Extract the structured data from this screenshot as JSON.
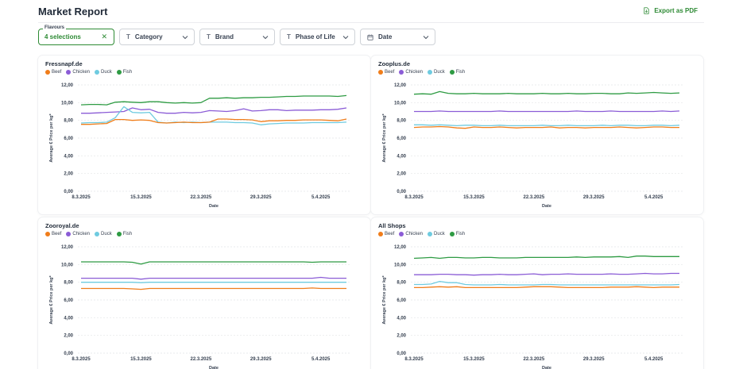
{
  "header": {
    "title": "Market Report",
    "export_label": "Export as PDF"
  },
  "filters": {
    "flavours": {
      "legend": "Flavours",
      "value": "4 selections"
    },
    "category": "Category",
    "brand": "Brand",
    "phase_of_life": "Phase of Life",
    "date": "Date"
  },
  "legend": [
    {
      "name": "Beef",
      "color": "#f07d1a"
    },
    {
      "name": "Chicken",
      "color": "#8b5cd6"
    },
    {
      "name": "Duck",
      "color": "#6fcbe0"
    },
    {
      "name": "Fish",
      "color": "#2e9b43"
    }
  ],
  "chart_data": [
    {
      "type": "line",
      "title": "Fressnapf.de",
      "xlabel": "Date",
      "ylabel": "Average € Price per kg*",
      "ylim": [
        0,
        12
      ],
      "yticks": [
        "0,00",
        "2,00",
        "4,00",
        "6,00",
        "8,00",
        "10,00",
        "12,00"
      ],
      "xticks": [
        "8.3.2025",
        "15.3.2025",
        "22.3.2025",
        "29.3.2025",
        "5.4.2025"
      ],
      "x_start": "8.3.2025",
      "series": [
        {
          "name": "Fish",
          "values": [
            9.75,
            9.8,
            9.8,
            9.75,
            10.05,
            10.1,
            10.05,
            10.0,
            10.1,
            10.1,
            10.0,
            9.95,
            10.0,
            9.95,
            10.0,
            10.5,
            10.5,
            10.55,
            10.5,
            10.55,
            10.55,
            10.6,
            10.6,
            10.65,
            10.7,
            10.7,
            10.75,
            10.75,
            10.75,
            10.75,
            10.7,
            10.8
          ]
        },
        {
          "name": "Chicken",
          "values": [
            8.8,
            8.8,
            8.85,
            8.9,
            8.95,
            9.0,
            9.4,
            9.2,
            9.25,
            8.9,
            8.8,
            8.8,
            8.9,
            8.85,
            8.9,
            9.1,
            9.05,
            9.0,
            9.1,
            9.3,
            9.05,
            9.1,
            9.2,
            9.2,
            9.1,
            9.15,
            9.15,
            9.15,
            9.2,
            9.2,
            9.25,
            9.4
          ]
        },
        {
          "name": "Duck",
          "values": [
            7.7,
            7.75,
            7.75,
            7.8,
            8.3,
            9.55,
            8.9,
            8.85,
            8.9,
            7.8,
            7.7,
            7.8,
            7.75,
            7.8,
            7.75,
            7.8,
            7.8,
            7.8,
            7.75,
            7.75,
            7.7,
            7.5,
            7.6,
            7.65,
            7.7,
            7.7,
            7.7,
            7.75,
            7.75,
            7.75,
            7.75,
            7.8
          ]
        },
        {
          "name": "Beef",
          "values": [
            7.55,
            7.55,
            7.6,
            7.65,
            8.1,
            8.1,
            8.0,
            8.05,
            8.0,
            7.75,
            7.7,
            7.75,
            7.8,
            7.75,
            7.75,
            7.8,
            8.15,
            8.15,
            8.1,
            8.1,
            8.05,
            7.85,
            7.95,
            7.95,
            8.0,
            8.0,
            8.05,
            8.05,
            8.05,
            8.0,
            7.95,
            8.15
          ]
        }
      ]
    },
    {
      "type": "line",
      "title": "Zooplus.de",
      "xlabel": "Date",
      "ylabel": "Average € Price per kg*",
      "ylim": [
        0,
        12
      ],
      "yticks": [
        "0,00",
        "2,00",
        "4,00",
        "6,00",
        "8,00",
        "10,00",
        "12,00"
      ],
      "xticks": [
        "8.3.2025",
        "15.3.2025",
        "22.3.2025",
        "29.3.2025",
        "5.4.2025"
      ],
      "x_start": "8.3.2025",
      "series": [
        {
          "name": "Fish",
          "values": [
            10.95,
            11.0,
            10.95,
            11.25,
            11.05,
            11.0,
            11.0,
            11.05,
            11.0,
            11.0,
            11.0,
            11.05,
            11.0,
            11.0,
            11.0,
            11.05,
            11.0,
            11.0,
            11.05,
            11.0,
            11.0,
            11.05,
            11.05,
            11.0,
            11.0,
            11.1,
            11.05,
            11.1,
            11.15,
            11.1,
            11.05,
            11.1
          ]
        },
        {
          "name": "Chicken",
          "values": [
            9.0,
            9.0,
            9.0,
            9.05,
            9.0,
            9.0,
            9.0,
            9.0,
            9.0,
            9.0,
            9.05,
            9.0,
            9.0,
            9.0,
            9.0,
            9.0,
            9.0,
            9.0,
            9.0,
            9.05,
            9.0,
            9.0,
            9.0,
            9.05,
            9.0,
            9.0,
            9.0,
            9.0,
            9.0,
            9.05,
            9.0,
            9.05
          ]
        },
        {
          "name": "Duck",
          "values": [
            7.5,
            7.5,
            7.45,
            7.5,
            7.45,
            7.4,
            7.45,
            7.45,
            7.4,
            7.4,
            7.45,
            7.4,
            7.4,
            7.4,
            7.4,
            7.45,
            7.4,
            7.4,
            7.45,
            7.4,
            7.4,
            7.4,
            7.45,
            7.4,
            7.45,
            7.45,
            7.4,
            7.4,
            7.45,
            7.45,
            7.4,
            7.45
          ]
        },
        {
          "name": "Beef",
          "values": [
            7.2,
            7.25,
            7.25,
            7.3,
            7.25,
            7.15,
            7.1,
            7.25,
            7.2,
            7.2,
            7.25,
            7.2,
            7.15,
            7.2,
            7.2,
            7.2,
            7.25,
            7.15,
            7.2,
            7.2,
            7.15,
            7.2,
            7.2,
            7.2,
            7.25,
            7.2,
            7.15,
            7.2,
            7.25,
            7.25,
            7.2,
            7.2
          ]
        }
      ]
    },
    {
      "type": "line",
      "title": "Zooroyal.de",
      "xlabel": "Date",
      "ylabel": "Average € Price per kg*",
      "ylim": [
        0,
        12
      ],
      "yticks": [
        "0,00",
        "2,00",
        "4,00",
        "6,00",
        "8,00",
        "10,00",
        "12,00"
      ],
      "xticks": [
        "8.3.2025",
        "15.3.2025",
        "22.3.2025",
        "29.3.2025",
        "5.4.2025"
      ],
      "x_start": "8.3.2025",
      "series": [
        {
          "name": "Fish",
          "values": [
            10.3,
            10.3,
            10.3,
            10.3,
            10.3,
            10.3,
            10.25,
            10.05,
            10.3,
            10.3,
            10.3,
            10.3,
            10.3,
            10.3,
            10.3,
            10.3,
            10.3,
            10.3,
            10.3,
            10.3,
            10.3,
            10.3,
            10.3,
            10.3,
            10.3,
            10.3,
            10.3,
            10.25,
            10.3,
            10.3,
            10.3,
            10.3
          ]
        },
        {
          "name": "Chicken",
          "values": [
            8.45,
            8.45,
            8.45,
            8.45,
            8.45,
            8.45,
            8.45,
            8.35,
            8.45,
            8.45,
            8.45,
            8.45,
            8.45,
            8.45,
            8.45,
            8.45,
            8.45,
            8.45,
            8.45,
            8.45,
            8.45,
            8.45,
            8.45,
            8.45,
            8.45,
            8.45,
            8.45,
            8.45,
            8.55,
            8.45,
            8.45,
            8.45
          ]
        },
        {
          "name": "Duck",
          "values": [
            8.0,
            8.0,
            8.0,
            8.0,
            8.0,
            8.0,
            8.0,
            7.95,
            8.0,
            8.0,
            8.0,
            8.0,
            8.0,
            8.0,
            8.0,
            8.0,
            8.0,
            8.0,
            8.0,
            8.0,
            8.0,
            8.0,
            8.0,
            8.0,
            8.0,
            8.0,
            8.0,
            8.0,
            8.0,
            8.0,
            8.0,
            8.0
          ]
        },
        {
          "name": "Beef",
          "values": [
            7.3,
            7.3,
            7.3,
            7.3,
            7.3,
            7.3,
            7.25,
            7.2,
            7.3,
            7.3,
            7.3,
            7.3,
            7.3,
            7.3,
            7.3,
            7.3,
            7.3,
            7.3,
            7.3,
            7.3,
            7.3,
            7.3,
            7.3,
            7.3,
            7.3,
            7.3,
            7.3,
            7.35,
            7.3,
            7.3,
            7.3,
            7.3
          ]
        }
      ]
    },
    {
      "type": "line",
      "title": "All Shops",
      "xlabel": "Date",
      "ylabel": "Average € Price per kg*",
      "ylim": [
        0,
        12
      ],
      "yticks": [
        "0,00",
        "2,00",
        "4,00",
        "6,00",
        "8,00",
        "10,00",
        "12,00"
      ],
      "xticks": [
        "8.3.2025",
        "15.3.2025",
        "22.3.2025",
        "29.3.2025",
        "5.4.2025"
      ],
      "x_start": "8.3.2025",
      "series": [
        {
          "name": "Fish",
          "values": [
            10.7,
            10.75,
            10.8,
            10.7,
            10.8,
            10.8,
            10.75,
            10.75,
            10.8,
            10.8,
            10.75,
            10.75,
            10.75,
            10.8,
            10.8,
            10.8,
            10.8,
            10.8,
            10.8,
            10.85,
            10.8,
            10.85,
            10.85,
            10.85,
            10.9,
            10.8,
            10.95,
            10.95,
            10.9,
            10.9,
            10.9,
            10.9
          ]
        },
        {
          "name": "Chicken",
          "values": [
            8.85,
            8.85,
            8.85,
            8.9,
            8.9,
            8.85,
            8.85,
            8.8,
            8.85,
            8.85,
            8.9,
            8.85,
            8.85,
            8.9,
            8.95,
            8.85,
            8.9,
            8.9,
            8.95,
            8.9,
            8.9,
            8.9,
            8.9,
            8.95,
            8.9,
            8.9,
            8.95,
            9.0,
            8.95,
            8.95,
            9.0,
            9.0
          ]
        },
        {
          "name": "Duck",
          "values": [
            7.75,
            7.75,
            7.8,
            8.1,
            7.95,
            7.95,
            7.75,
            7.7,
            7.7,
            7.7,
            7.75,
            7.7,
            7.7,
            7.7,
            7.7,
            7.75,
            7.75,
            7.7,
            7.7,
            7.7,
            7.7,
            7.7,
            7.7,
            7.7,
            7.7,
            7.7,
            7.7,
            7.7,
            7.7,
            7.7,
            7.7,
            7.75
          ]
        },
        {
          "name": "Beef",
          "values": [
            7.4,
            7.4,
            7.45,
            7.5,
            7.45,
            7.5,
            7.4,
            7.4,
            7.4,
            7.4,
            7.4,
            7.4,
            7.4,
            7.45,
            7.5,
            7.5,
            7.5,
            7.45,
            7.4,
            7.4,
            7.4,
            7.4,
            7.4,
            7.45,
            7.45,
            7.45,
            7.5,
            7.45,
            7.4,
            7.45,
            7.45,
            7.45
          ]
        }
      ]
    }
  ]
}
